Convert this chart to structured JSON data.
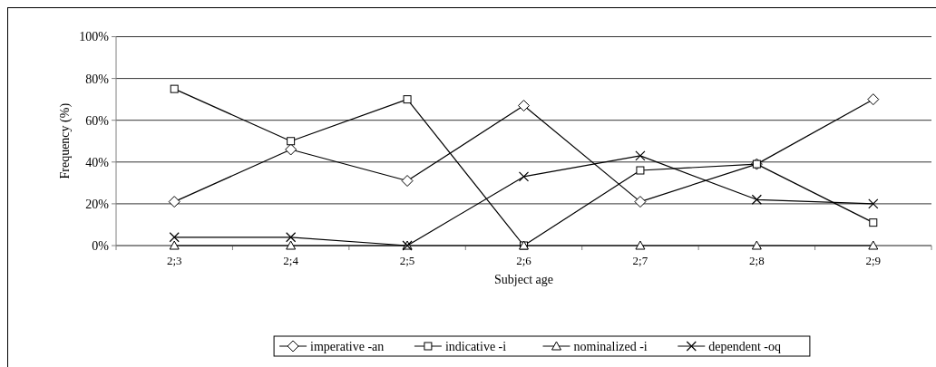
{
  "chart_data": {
    "type": "line",
    "xlabel": "Subject age",
    "ylabel": "Frequency (%)",
    "categories": [
      "2;3",
      "2;4",
      "2;5",
      "2;6",
      "2;7",
      "2;8",
      "2;9"
    ],
    "series": [
      {
        "name": "imperative -an",
        "color": "#000000",
        "marker": "diamond",
        "values": [
          21,
          46,
          31,
          67,
          21,
          39,
          70
        ]
      },
      {
        "name": "indicative -i",
        "color": "#000000",
        "marker": "square",
        "values": [
          75,
          50,
          70,
          0,
          36,
          39,
          11
        ]
      },
      {
        "name": "nominalized -i",
        "color": "#000000",
        "marker": "triangle",
        "values": [
          0,
          0,
          0,
          0,
          0,
          0,
          0
        ]
      },
      {
        "name": "dependent -oq",
        "color": "#000000",
        "marker": "cross",
        "values": [
          4,
          4,
          0,
          33,
          43,
          22,
          20
        ]
      }
    ],
    "ylim": [
      0,
      100
    ],
    "yticks": [
      {
        "value": 0,
        "label": "0%"
      },
      {
        "value": 20,
        "label": "20%"
      },
      {
        "value": 40,
        "label": "40%"
      },
      {
        "value": 60,
        "label": "60%"
      },
      {
        "value": 80,
        "label": "80%"
      },
      {
        "value": 100,
        "label": "100%"
      }
    ],
    "grid": "y",
    "legend": "bottom",
    "line_style": "solid"
  }
}
